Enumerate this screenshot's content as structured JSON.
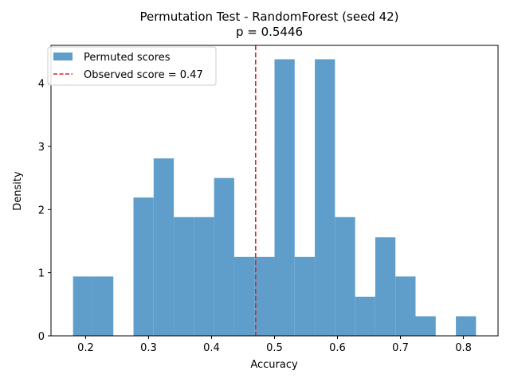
{
  "chart_data": {
    "type": "bar",
    "title": "Permutation Test - RandomForest (seed 42)",
    "subtitle": "p = 0.5446",
    "xlabel": "Accuracy",
    "ylabel": "Density",
    "xlim": [
      0.145,
      0.855
    ],
    "ylim": [
      0,
      4.6
    ],
    "x_ticks": [
      0.2,
      0.3,
      0.4,
      0.5,
      0.6,
      0.7,
      0.8
    ],
    "x_tick_labels": [
      "0.2",
      "0.3",
      "0.4",
      "0.5",
      "0.6",
      "0.7",
      "0.8"
    ],
    "y_ticks": [
      0,
      1,
      2,
      3,
      4
    ],
    "y_tick_labels": [
      "0",
      "1",
      "2",
      "3",
      "4"
    ],
    "bin_edges": [
      0.18,
      0.212,
      0.244,
      0.276,
      0.308,
      0.34,
      0.372,
      0.404,
      0.436,
      0.468,
      0.5,
      0.532,
      0.564,
      0.596,
      0.628,
      0.66,
      0.692,
      0.724,
      0.756,
      0.788,
      0.82
    ],
    "series": [
      {
        "name": "Permuted scores",
        "color": "#5f9ecb",
        "values": [
          0.94,
          0.94,
          0.0,
          2.19,
          2.81,
          1.88,
          1.88,
          2.5,
          1.25,
          1.25,
          4.38,
          1.25,
          4.38,
          1.88,
          0.62,
          1.56,
          0.94,
          0.31,
          0.0,
          0.31
        ]
      }
    ],
    "observed": {
      "label": "Observed score = 0.47",
      "value": 0.47,
      "color": "#d62728"
    },
    "legend_position": "top-left",
    "grid": false
  }
}
